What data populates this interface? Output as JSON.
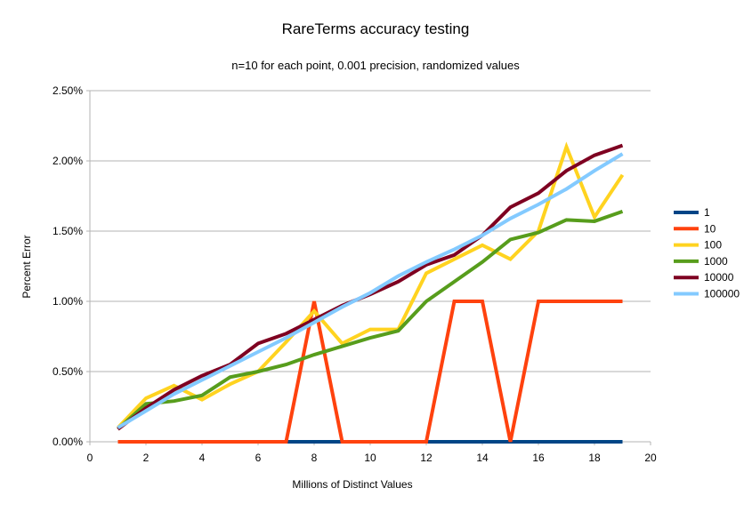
{
  "chart_data": {
    "type": "line",
    "title": "RareTerms accuracy testing",
    "subtitle": "n=10 for each point, 0.001 precision, randomized values",
    "xlabel": "Millions of Distinct Values",
    "ylabel": "Percent Error",
    "xlim": [
      0,
      20
    ],
    "ylim": [
      0,
      2.5
    ],
    "x_ticks": [
      "0",
      "2",
      "4",
      "6",
      "8",
      "10",
      "12",
      "14",
      "16",
      "18",
      "20"
    ],
    "y_ticks": [
      "0.00%",
      "0.50%",
      "1.00%",
      "1.50%",
      "2.00%",
      "2.50%"
    ],
    "grid": "horizontal",
    "legend_position": "right",
    "x": [
      1,
      2,
      3,
      4,
      5,
      6,
      7,
      8,
      9,
      10,
      11,
      12,
      13,
      14,
      15,
      16,
      17,
      18,
      19
    ],
    "series": [
      {
        "name": "1",
        "color": "#004586",
        "values": [
          0,
          0,
          0,
          0,
          0,
          0,
          0,
          0,
          0,
          0,
          0,
          0,
          0,
          0,
          0,
          0,
          0,
          0,
          0
        ]
      },
      {
        "name": "10",
        "color": "#ff420e",
        "values": [
          0,
          0,
          0,
          0,
          0,
          0,
          0,
          1.0,
          0,
          0,
          0,
          0,
          1.0,
          1.0,
          0,
          1.0,
          1.0,
          1.0,
          1.0
        ]
      },
      {
        "name": "100",
        "color": "#ffd320",
        "values": [
          0.1,
          0.31,
          0.4,
          0.3,
          0.41,
          0.5,
          0.71,
          0.93,
          0.7,
          0.8,
          0.8,
          1.2,
          1.3,
          1.4,
          1.3,
          1.5,
          2.1,
          1.6,
          1.9
        ]
      },
      {
        "name": "1000",
        "color": "#579d1c",
        "values": [
          0.09,
          0.27,
          0.29,
          0.33,
          0.46,
          0.5,
          0.55,
          0.62,
          0.68,
          0.74,
          0.79,
          1.0,
          1.14,
          1.28,
          1.44,
          1.49,
          1.58,
          1.57,
          1.64
        ]
      },
      {
        "name": "10000",
        "color": "#7e0021",
        "values": [
          0.09,
          0.24,
          0.37,
          0.47,
          0.55,
          0.7,
          0.77,
          0.87,
          0.97,
          1.05,
          1.14,
          1.26,
          1.33,
          1.47,
          1.67,
          1.77,
          1.93,
          2.04,
          2.11
        ]
      },
      {
        "name": "100000",
        "color": "#83caff",
        "values": [
          0.1,
          0.22,
          0.34,
          0.44,
          0.54,
          0.64,
          0.74,
          0.85,
          0.96,
          1.06,
          1.18,
          1.28,
          1.37,
          1.47,
          1.59,
          1.69,
          1.8,
          1.93,
          2.05
        ]
      }
    ]
  }
}
